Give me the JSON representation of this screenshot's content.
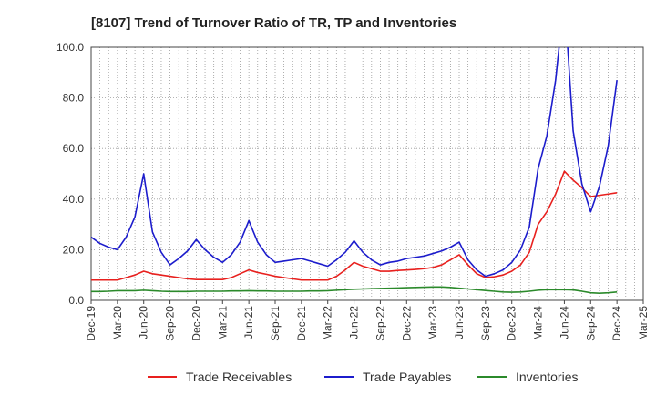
{
  "chart_data": {
    "type": "line",
    "title": "[8107]  Trend of Turnover Ratio of TR, TP and Inventories",
    "xlabel": "",
    "ylabel": "",
    "ylim": [
      0,
      100
    ],
    "y_ticks": [
      "0.0",
      "20.0",
      "40.0",
      "60.0",
      "80.0",
      "100.0"
    ],
    "x_ticks": [
      "Dec-19",
      "Mar-20",
      "Jun-20",
      "Sep-20",
      "Dec-20",
      "Mar-21",
      "Jun-21",
      "Sep-21",
      "Dec-21",
      "Mar-22",
      "Jun-22",
      "Sep-22",
      "Dec-22",
      "Mar-23",
      "Jun-23",
      "Sep-23",
      "Dec-23",
      "Mar-24",
      "Jun-24",
      "Sep-24",
      "Dec-24",
      "Mar-25"
    ],
    "x": [
      "Dec-19",
      "Jan-20",
      "Feb-20",
      "Mar-20",
      "Apr-20",
      "May-20",
      "Jun-20",
      "Jul-20",
      "Aug-20",
      "Sep-20",
      "Oct-20",
      "Nov-20",
      "Dec-20",
      "Jan-21",
      "Feb-21",
      "Mar-21",
      "Apr-21",
      "May-21",
      "Jun-21",
      "Jul-21",
      "Aug-21",
      "Sep-21",
      "Oct-21",
      "Nov-21",
      "Dec-21",
      "Jan-22",
      "Feb-22",
      "Mar-22",
      "Apr-22",
      "May-22",
      "Jun-22",
      "Jul-22",
      "Aug-22",
      "Sep-22",
      "Oct-22",
      "Nov-22",
      "Dec-22",
      "Jan-23",
      "Feb-23",
      "Mar-23",
      "Apr-23",
      "May-23",
      "Jun-23",
      "Jul-23",
      "Aug-23",
      "Sep-23",
      "Oct-23",
      "Nov-23",
      "Dec-23",
      "Jan-24",
      "Feb-24",
      "Mar-24",
      "Apr-24",
      "May-24",
      "Jun-24",
      "Jul-24",
      "Aug-24",
      "Sep-24",
      "Oct-24",
      "Nov-24",
      "Dec-24"
    ],
    "grid": true,
    "legend_position": "bottom",
    "series": [
      {
        "name": "Trade Receivables",
        "color": "#e8201e",
        "values": [
          8,
          8,
          8,
          8,
          9,
          10,
          11.5,
          10.5,
          10,
          9.5,
          9,
          8.5,
          8.2,
          8.2,
          8.2,
          8.2,
          9,
          10.5,
          12,
          11,
          10.3,
          9.5,
          9,
          8.5,
          8,
          8,
          8,
          8,
          9.5,
          12,
          15,
          13.5,
          12.5,
          11.5,
          11.5,
          11.8,
          12,
          12.2,
          12.5,
          13,
          14,
          16,
          18,
          14,
          10.5,
          9,
          9.3,
          10,
          11.5,
          14,
          19,
          30,
          35,
          42,
          51,
          47.5,
          44.5,
          41,
          41.5,
          42,
          42.5
        ]
      },
      {
        "name": "Trade Payables",
        "color": "#1c1ccc",
        "values": [
          25,
          22.5,
          21,
          20,
          25,
          33,
          50,
          27,
          19,
          14,
          16.5,
          19.5,
          24,
          20,
          17,
          15,
          18,
          23,
          31.5,
          23,
          18,
          15,
          15.5,
          16,
          16.5,
          15.5,
          14.5,
          13.5,
          16,
          19,
          23.5,
          19,
          16,
          14,
          15,
          15.5,
          16.5,
          17,
          17.5,
          18.5,
          19.5,
          21,
          23,
          16,
          12,
          9.5,
          10.5,
          12,
          15,
          20,
          29,
          52,
          65,
          87,
          120,
          67,
          46,
          35,
          45,
          61,
          87
        ]
      },
      {
        "name": "Inventories",
        "color": "#2b8a2b",
        "values": [
          3.5,
          3.5,
          3.6,
          3.8,
          3.8,
          3.8,
          4,
          3.8,
          3.6,
          3.5,
          3.5,
          3.5,
          3.6,
          3.6,
          3.6,
          3.6,
          3.7,
          3.7,
          3.8,
          3.7,
          3.7,
          3.6,
          3.6,
          3.6,
          3.6,
          3.7,
          3.7,
          3.8,
          4,
          4.2,
          4.4,
          4.5,
          4.6,
          4.7,
          4.8,
          4.9,
          5,
          5.1,
          5.2,
          5.3,
          5.3,
          5.1,
          4.8,
          4.5,
          4.2,
          3.9,
          3.6,
          3.3,
          3.2,
          3.3,
          3.6,
          4,
          4.2,
          4.2,
          4.2,
          4.1,
          3.6,
          3,
          2.8,
          3,
          3.3
        ]
      }
    ]
  }
}
